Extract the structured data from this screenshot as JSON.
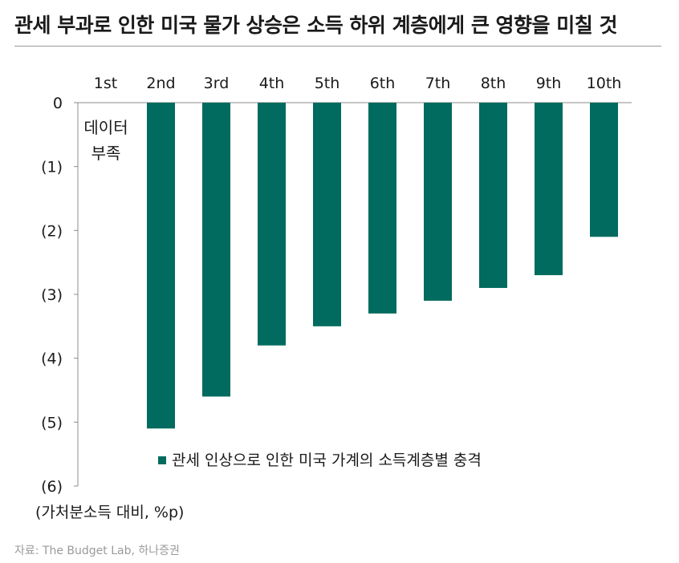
{
  "title": "관세 부과로 인한 미국 물가 상승은 소득 하위 계층에게 큰 영향을 미칠 것",
  "source": "자료: The Budget Lab, 하나증권",
  "chart_data": {
    "type": "bar",
    "categories": [
      "1st",
      "2nd",
      "3rd",
      "4th",
      "5th",
      "6th",
      "7th",
      "8th",
      "9th",
      "10th"
    ],
    "series": [
      {
        "name": "관세 인상으로 인한 미국 가계의 소득계층별 충격",
        "values": [
          null,
          -5.1,
          -4.6,
          -3.8,
          -3.5,
          -3.3,
          -3.1,
          -2.9,
          -2.7,
          -2.1
        ]
      }
    ],
    "ylim": [
      -6,
      0
    ],
    "yticks": [
      0,
      -1,
      -2,
      -3,
      -4,
      -5,
      -6
    ],
    "ytick_labels": [
      "0",
      "(1)",
      "(2)",
      "(3)",
      "(4)",
      "(5)",
      "(6)"
    ],
    "ylabel": "(가처분소득 대비, %p)",
    "annotation": {
      "line1": "데이터",
      "line2": "부족"
    },
    "bar_color": "#006b5e",
    "legend_position": "lower-right"
  }
}
